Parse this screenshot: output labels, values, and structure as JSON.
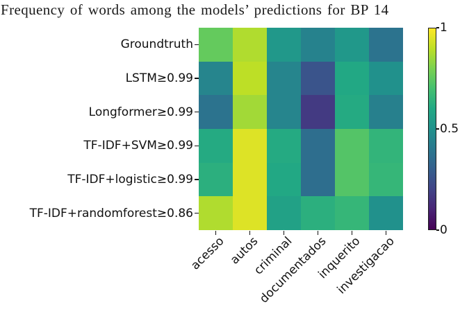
{
  "chart_data": {
    "type": "heatmap",
    "title": "Frequency of words among the models’ predictions for BP 14",
    "colormap": "viridis",
    "vmin": 0,
    "vmax": 1,
    "grid": false,
    "columns": [
      "acesso",
      "autos",
      "criminal",
      "documentados",
      "inquerito",
      "investigacao"
    ],
    "rows": [
      "Groundtruth",
      "LSTM≥0.99",
      "Longformer≥0.99",
      "TF-IDF+SVM≥0.99",
      "TF-IDF+logistic≥0.99",
      "TF-IDF+randomforest≥0.86"
    ],
    "values": [
      [
        0.76,
        0.88,
        0.53,
        0.44,
        0.53,
        0.38
      ],
      [
        0.45,
        0.9,
        0.45,
        0.26,
        0.6,
        0.5
      ],
      [
        0.38,
        0.86,
        0.45,
        0.17,
        0.61,
        0.43
      ],
      [
        0.61,
        0.95,
        0.61,
        0.36,
        0.73,
        0.65
      ],
      [
        0.63,
        0.95,
        0.6,
        0.36,
        0.73,
        0.66
      ],
      [
        0.88,
        0.95,
        0.57,
        0.63,
        0.66,
        0.5
      ]
    ],
    "colorbar": {
      "orientation": "vertical",
      "position": "right",
      "ticks": [
        {
          "value": 1,
          "label": "1"
        },
        {
          "value": 0.5,
          "label": "0.5"
        },
        {
          "value": 0,
          "label": "0"
        }
      ]
    }
  }
}
